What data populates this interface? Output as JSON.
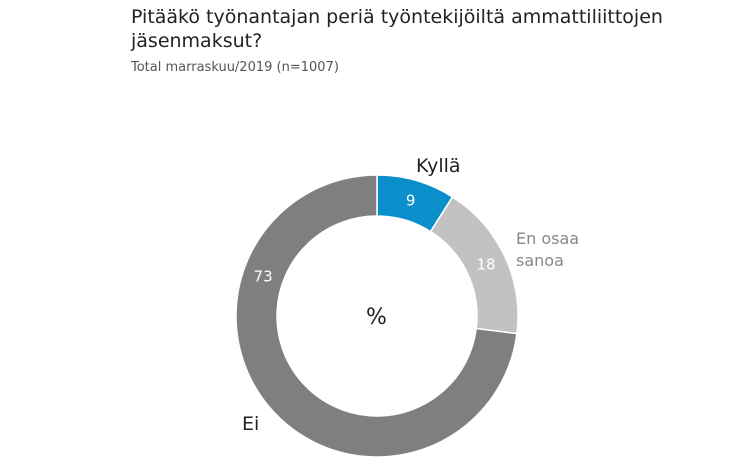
{
  "title": "Pitääkö työnantajan periä työntekijöiltä ammattiliittojen jäsenmaksut?",
  "subtitle": "Total marraskuu/2019 (n=1007)",
  "chart_data": {
    "type": "pie",
    "variant": "donut",
    "center_label": "%",
    "categories": [
      "Kyllä",
      "En osaa sanoa",
      "Ei"
    ],
    "values": [
      9,
      18,
      73
    ],
    "colors": [
      "#0b8fcb",
      "#c2c2c2",
      "#7f7f7f"
    ],
    "label_colors": [
      "#222222",
      "#888888",
      "#222222"
    ],
    "value_label_colors": [
      "#ffffff",
      "#ffffff",
      "#ffffff"
    ]
  }
}
